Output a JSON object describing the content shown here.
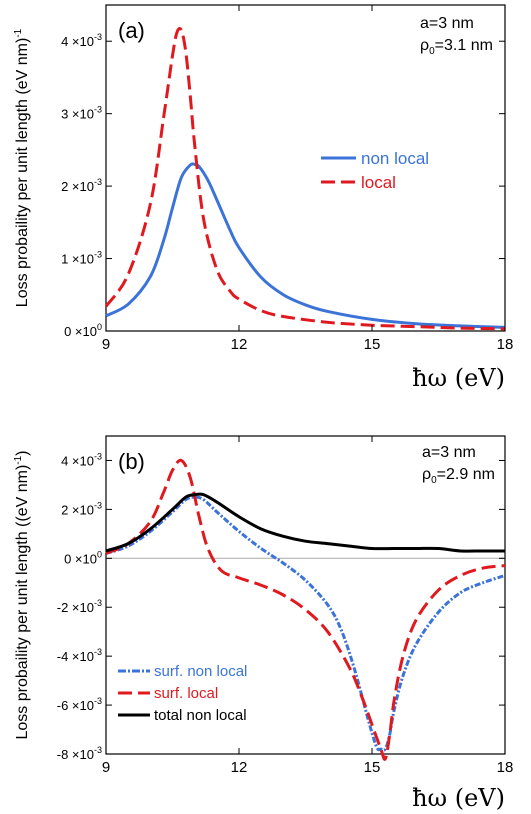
{
  "chart_data": [
    {
      "panel_label": "(a)",
      "type": "line",
      "xlabel": "ħω (eV)",
      "ylabel": "Loss probaility per unit length (eV nm)",
      "ylabel_sup": "-1",
      "xlim": [
        9,
        18
      ],
      "ylim": [
        0,
        0.0045
      ],
      "xticks": [
        "9",
        "12",
        "15",
        "18"
      ],
      "xtick_values": [
        9,
        12,
        15,
        18
      ],
      "yticks": [
        {
          "value": 0,
          "base": "0 ×10",
          "exp": "0"
        },
        {
          "value": 0.001,
          "base": "1 ×10",
          "exp": "-3"
        },
        {
          "value": 0.002,
          "base": "2 ×10",
          "exp": "-3"
        },
        {
          "value": 0.003,
          "base": "3 ×10",
          "exp": "-3"
        },
        {
          "value": 0.004,
          "base": "4 ×10",
          "exp": "-3"
        }
      ],
      "annotation_a": "a=3 nm",
      "annotation_rho": "ρ",
      "annotation_rho_sub": "0",
      "annotation_rho_val": "=3.1 nm",
      "legend_position": "right",
      "series": [
        {
          "name": "non local",
          "color": "#3b73d9",
          "style": "solid",
          "x": [
            9.0,
            9.5,
            10.0,
            10.3,
            10.5,
            10.7,
            10.9,
            11.0,
            11.1,
            11.3,
            11.5,
            11.8,
            12.0,
            12.5,
            13.0,
            13.5,
            14.0,
            15.0,
            16.0,
            17.0,
            18.0
          ],
          "y": [
            0.00021,
            0.00037,
            0.00075,
            0.00125,
            0.0017,
            0.00212,
            0.00229,
            0.0023,
            0.00227,
            0.00208,
            0.00181,
            0.00139,
            0.00115,
            0.00074,
            0.0005,
            0.00036,
            0.00027,
            0.00016,
            0.0001,
            7e-05,
            5e-05
          ]
        },
        {
          "name": "local",
          "color": "#e0191f",
          "style": "dashed",
          "x": [
            9.0,
            9.5,
            10.0,
            10.3,
            10.5,
            10.6,
            10.7,
            10.8,
            10.9,
            11.0,
            11.2,
            11.5,
            11.8,
            12.0,
            12.5,
            13.0,
            14.0,
            15.0,
            16.0,
            17.0,
            18.0
          ],
          "y": [
            0.00034,
            0.00078,
            0.00175,
            0.00295,
            0.0038,
            0.00412,
            0.00415,
            0.00385,
            0.00325,
            0.00257,
            0.00155,
            0.00085,
            0.00055,
            0.00044,
            0.00028,
            0.0002,
            0.00012,
            8e-05,
            6e-05,
            4e-05,
            3e-05
          ]
        }
      ]
    },
    {
      "panel_label": "(b)",
      "type": "line",
      "xlabel": "ħω (eV)",
      "ylabel": "Loss probaility per unit length ((eV nm)",
      "ylabel_sup": "-1",
      "ylabel_tail": ")",
      "xlim": [
        9,
        18
      ],
      "ylim": [
        -0.008,
        0.005
      ],
      "xticks": [
        "9",
        "12",
        "15",
        "18"
      ],
      "xtick_values": [
        9,
        12,
        15,
        18
      ],
      "yticks": [
        {
          "value": 0.004,
          "base": "4 ×10",
          "exp": "-3"
        },
        {
          "value": 0.002,
          "base": "2 ×10",
          "exp": "-3"
        },
        {
          "value": 0,
          "base": "0 ×10",
          "exp": "0"
        },
        {
          "value": -0.002,
          "base": "-2 ×10",
          "exp": "-3"
        },
        {
          "value": -0.004,
          "base": "-4 ×10",
          "exp": "-3"
        },
        {
          "value": -0.006,
          "base": "-6 ×10",
          "exp": "-3"
        },
        {
          "value": -0.008,
          "base": "-8 ×10",
          "exp": "-3"
        }
      ],
      "annotation_a": "a=3 nm",
      "annotation_rho": "ρ",
      "annotation_rho_sub": "0",
      "annotation_rho_val": "=2.9 nm",
      "legend_position": "bottom-left",
      "series": [
        {
          "name": "surf. non local",
          "color": "#3b73d9",
          "style": "dotdash",
          "x": [
            9.0,
            9.5,
            10.0,
            10.5,
            10.8,
            11.0,
            11.2,
            11.5,
            12.0,
            12.5,
            13.0,
            13.5,
            14.0,
            14.3,
            14.6,
            14.9,
            15.1,
            15.2,
            15.3,
            15.4,
            15.5,
            15.7,
            16.0,
            16.5,
            17.0,
            17.5,
            18.0
          ],
          "y": [
            0.0002,
            0.0005,
            0.0011,
            0.0019,
            0.0024,
            0.0025,
            0.0024,
            0.0019,
            0.0011,
            0.0004,
            -0.0002,
            -0.0009,
            -0.0019,
            -0.0029,
            -0.0045,
            -0.0065,
            -0.0077,
            -0.0078,
            -0.0078,
            -0.0072,
            -0.0062,
            -0.0048,
            -0.0035,
            -0.0022,
            -0.0014,
            -0.001,
            -0.0007
          ]
        },
        {
          "name": "surf. local",
          "color": "#e0191f",
          "style": "dashed",
          "x": [
            9.0,
            9.5,
            10.0,
            10.3,
            10.5,
            10.7,
            10.9,
            11.1,
            11.3,
            11.6,
            12.0,
            12.5,
            13.0,
            13.5,
            14.0,
            14.5,
            14.8,
            15.0,
            15.2,
            15.3,
            15.4,
            15.5,
            15.7,
            16.0,
            16.5,
            17.0,
            17.5,
            18.0
          ],
          "y": [
            0.0002,
            0.0006,
            0.0015,
            0.0027,
            0.0036,
            0.004,
            0.0033,
            0.0017,
            0.0004,
            -0.0005,
            -0.0008,
            -0.0011,
            -0.0015,
            -0.0021,
            -0.003,
            -0.0045,
            -0.0058,
            -0.0068,
            -0.0078,
            -0.0082,
            -0.0072,
            -0.0058,
            -0.004,
            -0.0025,
            -0.0013,
            -0.0007,
            -0.0004,
            -0.0003
          ]
        },
        {
          "name": "total non local",
          "color": "#000000",
          "style": "solid",
          "x": [
            9.0,
            9.5,
            10.0,
            10.5,
            10.8,
            11.0,
            11.2,
            11.5,
            12.0,
            12.5,
            13.0,
            13.5,
            14.0,
            14.5,
            15.0,
            15.5,
            16.0,
            16.5,
            17.0,
            17.5,
            18.0
          ],
          "y": [
            0.0003,
            0.0006,
            0.0012,
            0.002,
            0.0025,
            0.0026,
            0.0026,
            0.0023,
            0.0017,
            0.0012,
            0.0009,
            0.0007,
            0.0006,
            0.0005,
            0.0004,
            0.0004,
            0.0004,
            0.0004,
            0.0003,
            0.0003,
            0.0003
          ]
        }
      ]
    }
  ]
}
